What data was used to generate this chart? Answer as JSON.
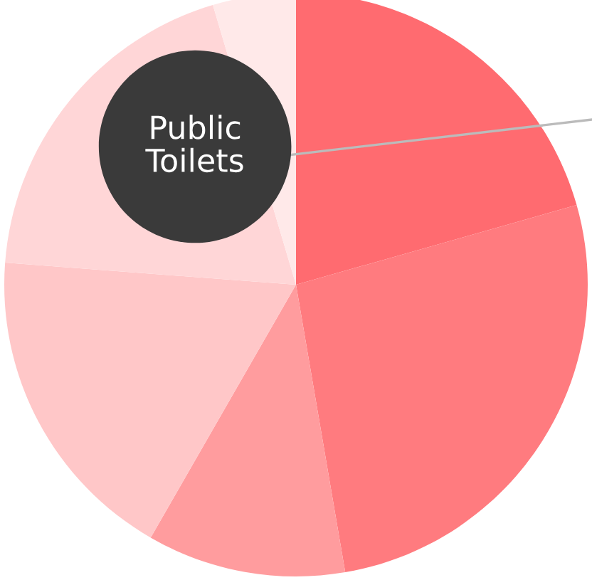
{
  "chart_data": {
    "type": "pie",
    "categories": [
      null,
      null,
      null,
      null,
      "Public Toilets",
      null
    ],
    "values": [
      20.6,
      26.7,
      11.0,
      17.9,
      19.2,
      4.6
    ],
    "colors": [
      "#ff6b70",
      "#ff7b7f",
      "#ff9c9e",
      "#ffc7c8",
      "#ffd6d7",
      "#ffe9e9"
    ]
  }
}
